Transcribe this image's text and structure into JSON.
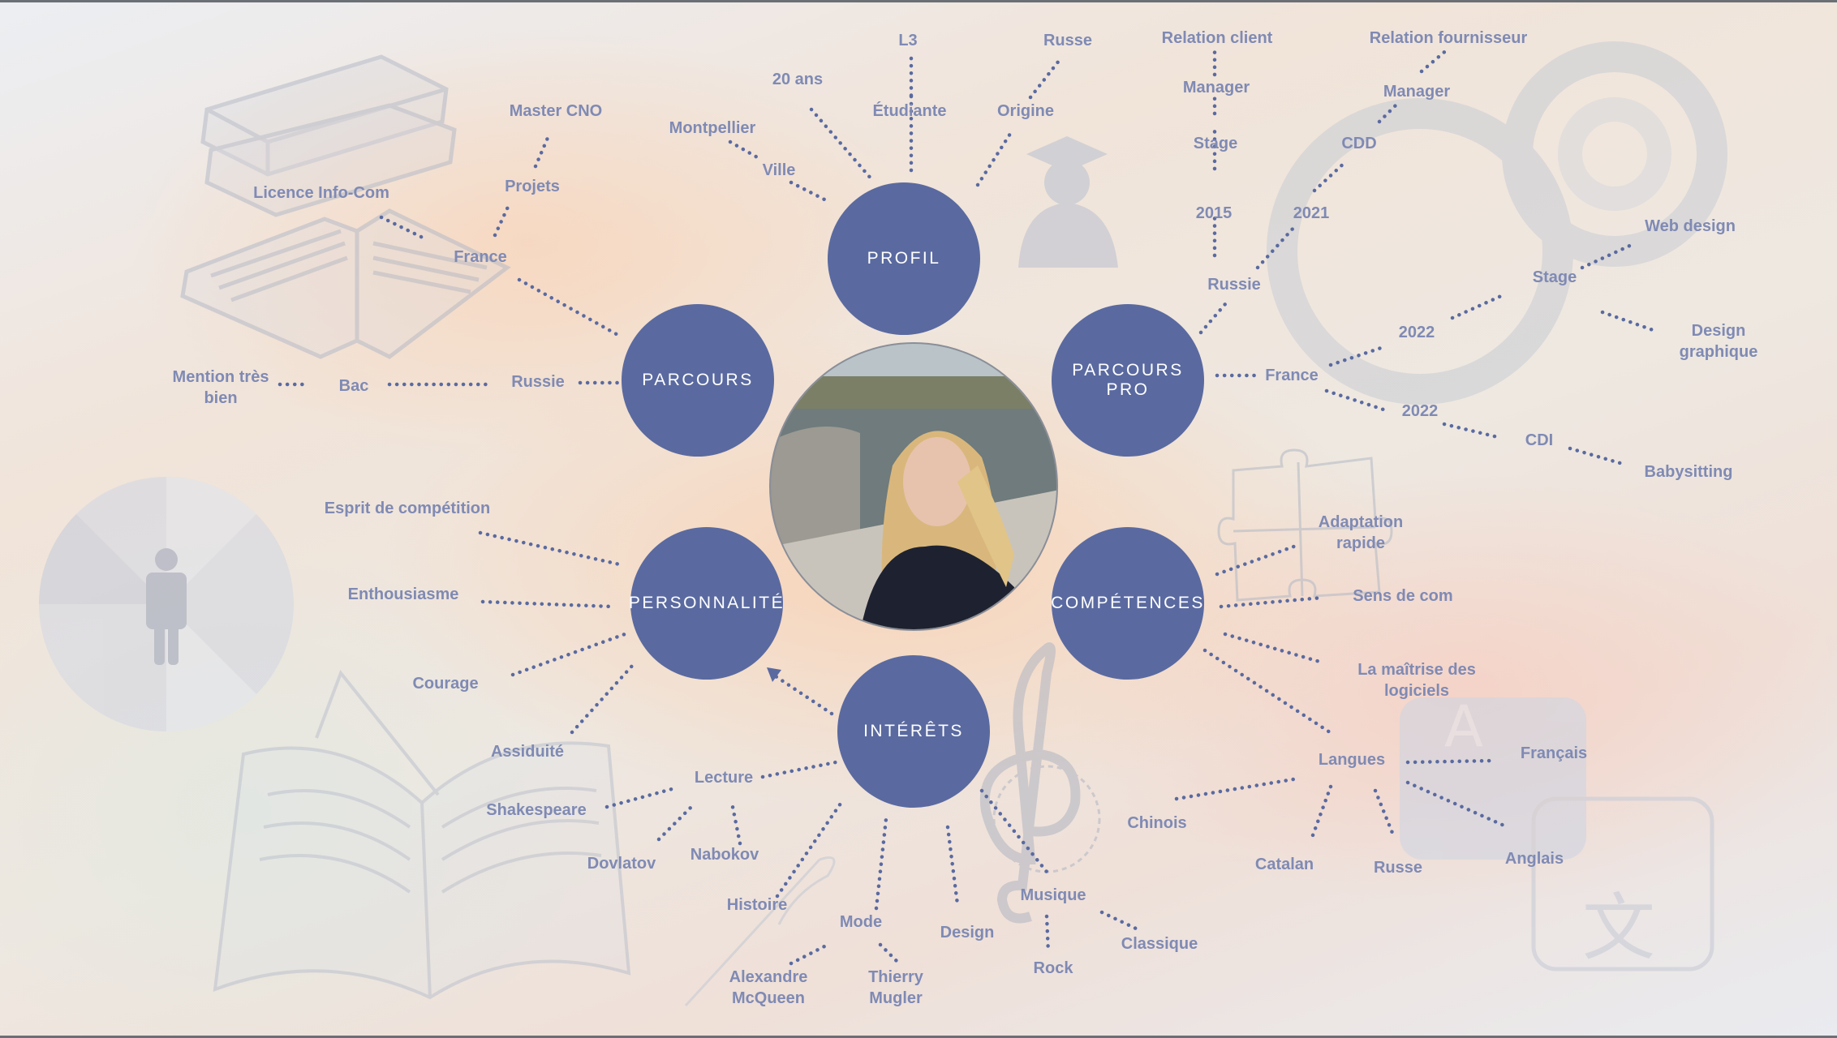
{
  "nodes": {
    "profil": "PROFIL",
    "parcours": "PARCOURS",
    "parcours_pro": "PARCOURS PRO",
    "personnalite": "PERSONNALITÉ",
    "competences": "COMPÉTENCES",
    "interets": "INTÉRÊTS"
  },
  "profil": {
    "l3": "L3",
    "etudiante": "Étudiante",
    "age": "20 ans",
    "ville": "Ville",
    "montpellier": "Montpellier",
    "origine": "Origine",
    "russe": "Russe"
  },
  "parcours": {
    "russie": "Russie",
    "bac": "Bac",
    "mention": "Mention très bien",
    "france": "France",
    "licence": "Licence Info-Com",
    "projets": "Projets",
    "master": "Master CNO"
  },
  "parcours_pro": {
    "russie": "Russie",
    "y2015": "2015",
    "stage_ru": "Stage",
    "manager_ru": "Manager",
    "relation_client": "Relation client",
    "y2021": "2021",
    "cdd": "CDD",
    "manager_cdd": "Manager",
    "relation_fournisseur": "Relation fournisseur",
    "france": "France",
    "y2022_a": "2022",
    "stage_fr": "Stage",
    "web_design": "Web design",
    "design_graphique": "Design graphique",
    "y2022_b": "2022",
    "cdi": "CDI",
    "babysitting": "Babysitting"
  },
  "personnalite": {
    "competition": "Esprit de compétition",
    "enthousiasme": "Enthousiasme",
    "courage": "Courage",
    "assiduite": "Assiduité"
  },
  "competences": {
    "adaptation": "Adaptation rapide",
    "sens_com": "Sens de com",
    "logiciels": "La maîtrise des logiciels",
    "langues": "Langues",
    "francais": "Français",
    "anglais": "Anglais",
    "russe": "Russe",
    "catalan": "Catalan",
    "chinois": "Chinois"
  },
  "interets": {
    "lecture": "Lecture",
    "shakespeare": "Shakespeare",
    "dovlatov": "Dovlatov",
    "nabokov": "Nabokov",
    "histoire": "Histoire",
    "mode": "Mode",
    "mcqueen": "Alexandre McQueen",
    "mugler": "Thierry Mugler",
    "design": "Design",
    "musique": "Musique",
    "rock": "Rock",
    "classique": "Classique"
  },
  "colors": {
    "node_fill": "#5a6aa0",
    "label_text": "#7f8ab4",
    "connector": "#5a6aa0"
  },
  "icons": [
    "books-icon",
    "graduate-icon",
    "gear-icon",
    "puzzle-icon",
    "person-chart-icon",
    "open-book-icon",
    "treble-clef-icon",
    "translate-icon",
    "needle-icon"
  ]
}
